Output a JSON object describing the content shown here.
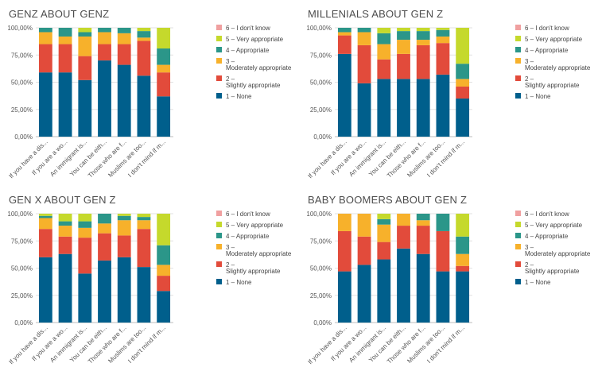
{
  "chart_data": [
    {
      "type": "bar",
      "stacked": true,
      "title": "GENZ ABOUT GENZ",
      "categories": [
        "If you have a dis...",
        "If you are a wo...",
        "An immigrant is...",
        "You can be eith...",
        "Those who are f...",
        "Muslims are too...",
        "I don't mind if m..."
      ],
      "ylim": [
        0,
        100
      ],
      "yticks": [
        "0,00%",
        "25,00%",
        "50,00%",
        "75,00%",
        "100,00%"
      ],
      "grid": true,
      "legend_position": "right",
      "series": [
        {
          "name": "1 – None",
          "color": "#005f8c",
          "values": [
            59,
            59,
            52,
            70,
            66,
            56,
            37
          ]
        },
        {
          "name": "2 – Slightly appropriate",
          "color": "#e24b3b",
          "values": [
            26,
            26,
            22,
            15,
            19,
            32,
            22
          ]
        },
        {
          "name": "3 – Moderately appropriate",
          "color": "#f7b12b",
          "values": [
            11,
            7,
            18,
            11,
            10,
            3,
            7
          ]
        },
        {
          "name": "4 – Appropriate",
          "color": "#2b9689",
          "values": [
            4,
            8,
            4,
            4,
            5,
            6,
            15
          ]
        },
        {
          "name": "5 – Very appropriate",
          "color": "#c5d92c",
          "values": [
            0,
            0,
            4,
            0,
            0,
            3,
            19
          ]
        },
        {
          "name": "6 – I don't know",
          "color": "#f0a0a0",
          "values": [
            0,
            0,
            0,
            0,
            0,
            0,
            0
          ]
        }
      ]
    },
    {
      "type": "bar",
      "stacked": true,
      "title": "MILLENIALS ABOUT GEN Z",
      "categories": [
        "If you have a dis...",
        "If you are a wo...",
        "An immigrant is...",
        "You can be eith...",
        "Those who are f...",
        "Muslims are too...",
        "I don't mind if m..."
      ],
      "ylim": [
        0,
        100
      ],
      "yticks": [
        "0,00%",
        "25,00%",
        "50,00%",
        "75,00%",
        "100,00%"
      ],
      "grid": true,
      "legend_position": "right",
      "series": [
        {
          "name": "1 – None",
          "color": "#005f8c",
          "values": [
            76,
            49,
            53,
            53,
            53,
            57,
            35
          ]
        },
        {
          "name": "2 – Slightly appropriate",
          "color": "#e24b3b",
          "values": [
            17,
            35,
            18,
            23,
            31,
            29,
            11
          ]
        },
        {
          "name": "3 – Moderately appropriate",
          "color": "#f7b12b",
          "values": [
            3,
            12,
            14,
            13,
            5,
            6,
            7
          ]
        },
        {
          "name": "4 – Appropriate",
          "color": "#2b9689",
          "values": [
            4,
            4,
            10,
            8,
            8,
            6,
            14
          ]
        },
        {
          "name": "5 – Very appropriate",
          "color": "#c5d92c",
          "values": [
            0,
            0,
            5,
            3,
            3,
            2,
            33
          ]
        },
        {
          "name": "6 – I don't know",
          "color": "#f0a0a0",
          "values": [
            0,
            0,
            0,
            0,
            0,
            0,
            0
          ]
        }
      ]
    },
    {
      "type": "bar",
      "stacked": true,
      "title": "GEN X ABOUT GEN Z",
      "categories": [
        "If you have a dis...",
        "If you are a wo...",
        "An immigrant is...",
        "You can be eith...",
        "Those who are f...",
        "Muslims are too...",
        "I don't mind if m..."
      ],
      "ylim": [
        0,
        100
      ],
      "yticks": [
        "0,00%",
        "25,00%",
        "50,00%",
        "75,00%",
        "100,00%"
      ],
      "grid": true,
      "legend_position": "right",
      "series": [
        {
          "name": "1 – None",
          "color": "#005f8c",
          "values": [
            60,
            63,
            45,
            57,
            60,
            51,
            29
          ]
        },
        {
          "name": "2 – Slightly appropriate",
          "color": "#e24b3b",
          "values": [
            26,
            16,
            33,
            25,
            20,
            35,
            14
          ]
        },
        {
          "name": "3 – Moderately appropriate",
          "color": "#f7b12b",
          "values": [
            10,
            10,
            9,
            9,
            14,
            8,
            10
          ]
        },
        {
          "name": "4 – Appropriate",
          "color": "#2b9689",
          "values": [
            2,
            4,
            6,
            9,
            4,
            3,
            18
          ]
        },
        {
          "name": "5 – Very appropriate",
          "color": "#c5d92c",
          "values": [
            2,
            7,
            7,
            0,
            2,
            3,
            29
          ]
        },
        {
          "name": "6 – I don't know",
          "color": "#f0a0a0",
          "values": [
            0,
            0,
            0,
            0,
            0,
            0,
            0
          ]
        }
      ]
    },
    {
      "type": "bar",
      "stacked": true,
      "title": "BABY BOOMERS ABOUT GEN Z",
      "categories": [
        "If you have a dis...",
        "If you are a wo...",
        "An immigrant is...",
        "You can be eith...",
        "Those who are f...",
        "Muslims are too...",
        "I don't mind if m..."
      ],
      "ylim": [
        0,
        100
      ],
      "yticks": [
        "0,00%",
        "25,00%",
        "50,00%",
        "75,00%",
        "100,00%"
      ],
      "grid": true,
      "legend_position": "right",
      "series": [
        {
          "name": "1 – None",
          "color": "#005f8c",
          "values": [
            47,
            53,
            58,
            68,
            63,
            47,
            47
          ]
        },
        {
          "name": "2 – Slightly appropriate",
          "color": "#e24b3b",
          "values": [
            37,
            26,
            16,
            21,
            26,
            37,
            5
          ]
        },
        {
          "name": "3 – Moderately appropriate",
          "color": "#f7b12b",
          "values": [
            16,
            21,
            16,
            11,
            5,
            0,
            11
          ]
        },
        {
          "name": "4 – Appropriate",
          "color": "#2b9689",
          "values": [
            0,
            0,
            5,
            0,
            6,
            16,
            16
          ]
        },
        {
          "name": "5 – Very appropriate",
          "color": "#c5d92c",
          "values": [
            0,
            0,
            5,
            0,
            0,
            0,
            21
          ]
        },
        {
          "name": "6 – I don't know",
          "color": "#f0a0a0",
          "values": [
            0,
            0,
            0,
            0,
            0,
            0,
            0
          ]
        }
      ]
    }
  ]
}
